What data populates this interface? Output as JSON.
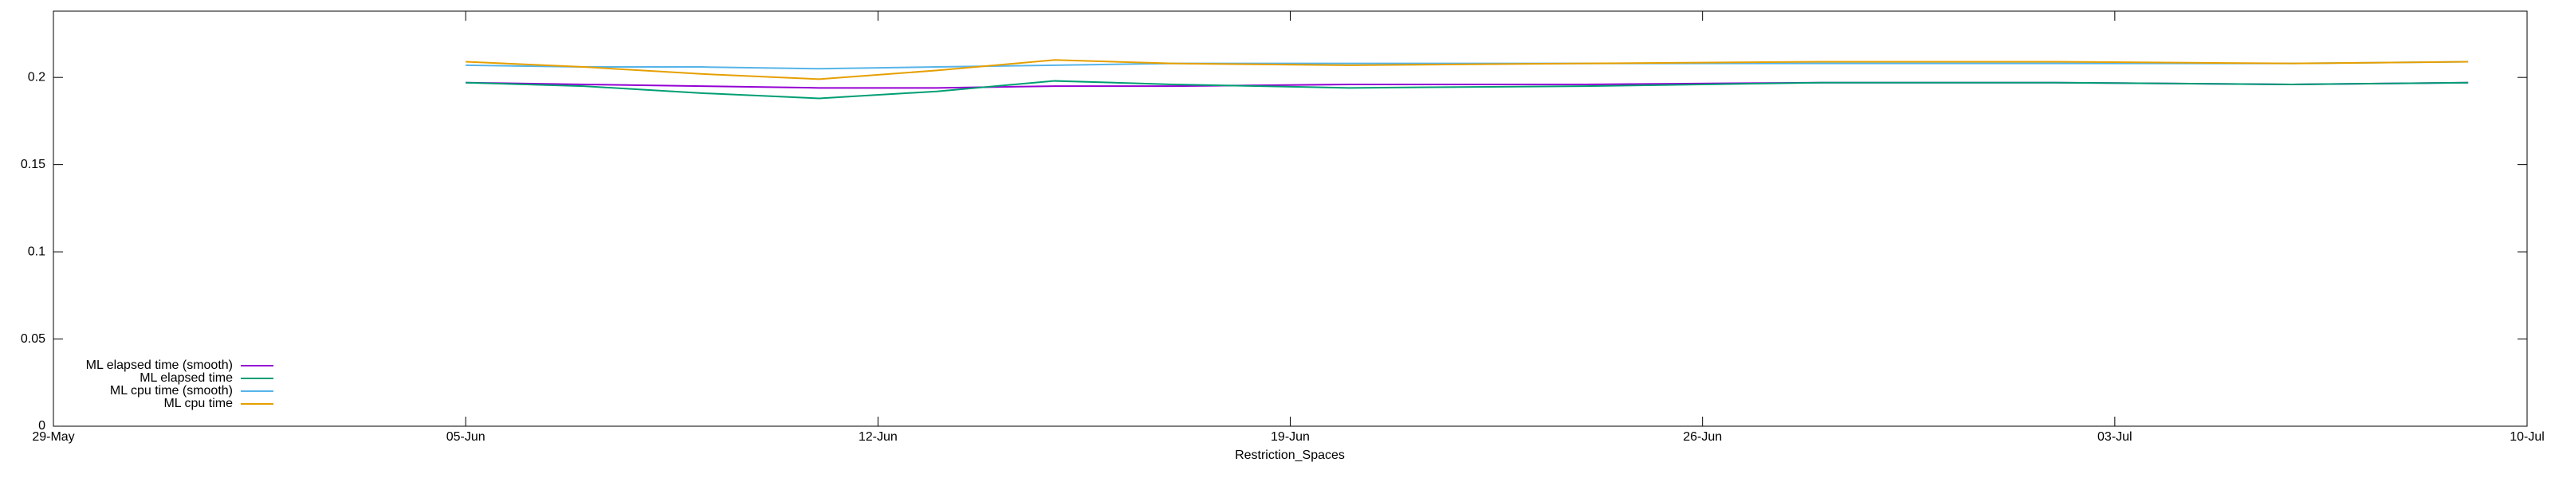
{
  "chart_data": {
    "type": "line",
    "x_label": "Restriction_Spaces",
    "x": [
      "05-Jun",
      "07-Jun",
      "09-Jun",
      "11-Jun",
      "13-Jun",
      "15-Jun",
      "17-Jun",
      "20-Jun",
      "24-Jun",
      "28-Jun",
      "02-Jul",
      "06-Jul",
      "09-Jul"
    ],
    "xlim": [
      "29-May",
      "10-Jul"
    ],
    "xticks": [
      "29-May",
      "05-Jun",
      "12-Jun",
      "19-Jun",
      "26-Jun",
      "03-Jul",
      "10-Jul"
    ],
    "ylim": [
      0,
      0.238
    ],
    "yticks": [
      0,
      0.05,
      0.1,
      0.15,
      0.2
    ],
    "legend_position": "bottom-left",
    "series": [
      {
        "name": "ML elapsed time (smooth)",
        "color": "#9400d3",
        "values": [
          0.197,
          0.196,
          0.195,
          0.194,
          0.194,
          0.195,
          0.195,
          0.196,
          0.196,
          0.197,
          0.197,
          0.196,
          0.197
        ]
      },
      {
        "name": "ML elapsed time",
        "color": "#009e73",
        "values": [
          0.197,
          0.195,
          0.191,
          0.188,
          0.192,
          0.198,
          0.196,
          0.194,
          0.195,
          0.197,
          0.197,
          0.196,
          0.197
        ]
      },
      {
        "name": "ML cpu time (smooth)",
        "color": "#56b4e9",
        "values": [
          0.207,
          0.206,
          0.206,
          0.205,
          0.206,
          0.207,
          0.208,
          0.208,
          0.208,
          0.208,
          0.208,
          0.208,
          0.209
        ]
      },
      {
        "name": "ML cpu time",
        "color": "#e69f00",
        "values": [
          0.209,
          0.206,
          0.202,
          0.199,
          0.204,
          0.21,
          0.208,
          0.207,
          0.208,
          0.209,
          0.209,
          0.208,
          0.209
        ]
      }
    ]
  }
}
